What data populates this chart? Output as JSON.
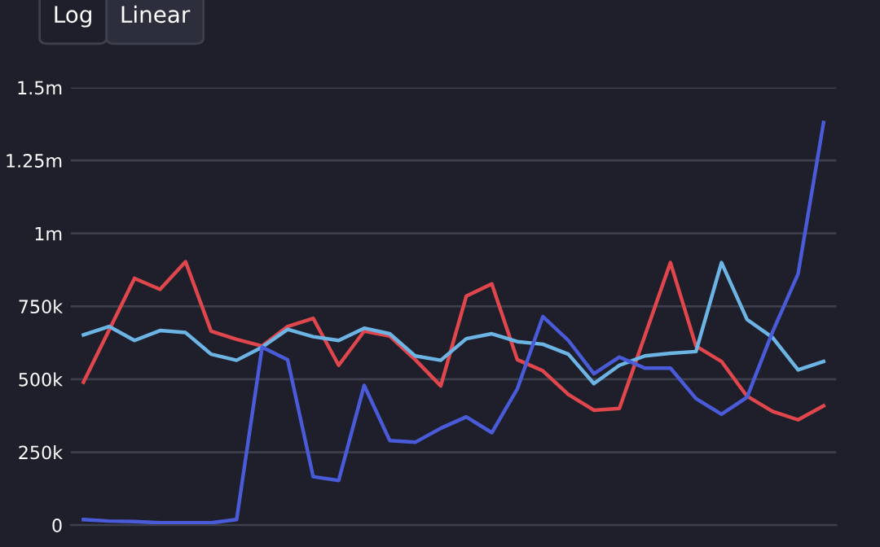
{
  "chart_data": {
    "type": "line",
    "annotations": [
      "Log",
      "Linear"
    ],
    "categories": [
      null,
      null,
      null,
      null,
      null,
      null,
      null,
      null,
      null,
      null,
      null,
      null,
      null,
      null,
      null,
      null,
      null,
      null,
      null,
      null,
      null,
      null,
      null,
      null,
      null,
      null,
      null,
      null,
      null,
      null
    ],
    "series": [
      {
        "color": "#e0474c",
        "values": [
          490000,
          668000,
          846000,
          808000,
          903000,
          665000,
          637000,
          614000,
          681000,
          709000,
          548000,
          665000,
          648000,
          567000,
          477000,
          785000,
          827000,
          567000,
          529000,
          448000,
          394000,
          400000,
          650000,
          900000,
          614000,
          561000,
          442000,
          390000,
          361000,
          409000
        ]
      },
      {
        "color": "#6cb4e4",
        "values": [
          652000,
          681000,
          633000,
          667000,
          660000,
          586000,
          565000,
          610000,
          671000,
          646000,
          633000,
          675000,
          656000,
          580000,
          565000,
          639000,
          656000,
          629000,
          620000,
          586000,
          485000,
          548000,
          580000,
          589000,
          595000,
          900000,
          705000,
          643000,
          532000,
          561000
        ]
      },
      {
        "color": "#4a5bd9",
        "values": [
          19000,
          14000,
          12000,
          8000,
          8000,
          8000,
          19000,
          610000,
          567000,
          166000,
          153000,
          479000,
          290000,
          284000,
          332000,
          371000,
          317000,
          467000,
          715000,
          633000,
          519000,
          576000,
          538000,
          538000,
          434000,
          380000,
          438000,
          662000,
          861000,
          1380000
        ]
      }
    ],
    "ylim": [
      0,
      1500000
    ],
    "yticks": [
      {
        "value": 0,
        "label": "0"
      },
      {
        "value": 250000,
        "label": "250k"
      },
      {
        "value": 500000,
        "label": "500k"
      },
      {
        "value": 750000,
        "label": "750k"
      },
      {
        "value": 1000000,
        "label": "1m"
      },
      {
        "value": 1250000,
        "label": "1.25m"
      },
      {
        "value": 1500000,
        "label": "1.5m"
      }
    ],
    "grid": "y",
    "legend": false,
    "line_style": "solid",
    "marker": "none"
  }
}
